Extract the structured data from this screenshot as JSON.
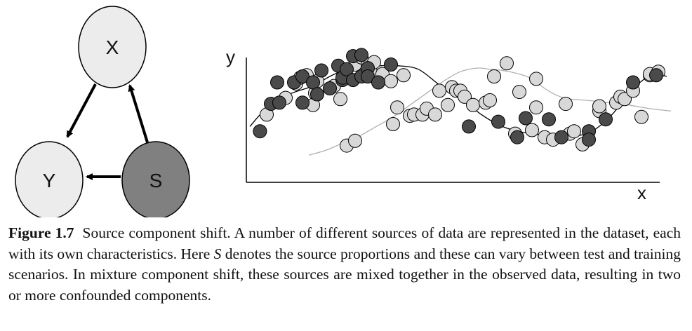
{
  "diagram": {
    "nodes": [
      {
        "id": "X",
        "label": "X",
        "fill": "#ececec"
      },
      {
        "id": "Y",
        "label": "Y",
        "fill": "#ececec"
      },
      {
        "id": "S",
        "label": "S",
        "fill": "#808080"
      }
    ],
    "edges": [
      {
        "from": "X",
        "to": "Y"
      },
      {
        "from": "S",
        "to": "Y"
      },
      {
        "from": "S",
        "to": "X"
      }
    ]
  },
  "chart_data": {
    "type": "scatter",
    "xlabel": "x",
    "ylabel": "y",
    "xlim": [
      0,
      100
    ],
    "ylim": [
      0,
      100
    ],
    "grid": false,
    "series": [
      {
        "color": "#4a4a4a",
        "points": [
          [
            2.4,
            34
          ],
          [
            5,
            57
          ],
          [
            6.5,
            75
          ],
          [
            7,
            58
          ],
          [
            10.5,
            75
          ],
          [
            12.5,
            80
          ],
          [
            12.5,
            58
          ],
          [
            15,
            75
          ],
          [
            16,
            65
          ],
          [
            17,
            85
          ],
          [
            19,
            70
          ],
          [
            21,
            89
          ],
          [
            22,
            77
          ],
          [
            22,
            79
          ],
          [
            23,
            86
          ],
          [
            24.5,
            77
          ],
          [
            24.5,
            97
          ],
          [
            26.5,
            98
          ],
          [
            26.5,
            80
          ],
          [
            28,
            87
          ],
          [
            28,
            80
          ],
          [
            30.5,
            75
          ],
          [
            33.5,
            90
          ],
          [
            52,
            38
          ],
          [
            59,
            42
          ],
          [
            63.5,
            29
          ],
          [
            65.5,
            45
          ],
          [
            71,
            44
          ],
          [
            74,
            29
          ],
          [
            80.5,
            34
          ],
          [
            80.5,
            27
          ],
          [
            84.5,
            44
          ],
          [
            91,
            75
          ],
          [
            96.5,
            81
          ]
        ],
        "curve": [
          [
            0,
            38
          ],
          [
            3,
            50
          ],
          [
            6,
            58
          ],
          [
            10,
            66
          ],
          [
            15,
            72
          ],
          [
            19,
            80
          ],
          [
            23,
            86
          ],
          [
            27,
            88
          ],
          [
            31,
            89
          ],
          [
            35,
            89
          ],
          [
            40,
            86
          ],
          [
            45,
            73
          ],
          [
            50,
            62
          ],
          [
            55,
            48
          ],
          [
            60,
            38
          ],
          [
            65,
            33
          ],
          [
            70,
            31
          ],
          [
            75,
            30
          ],
          [
            80,
            32
          ],
          [
            84,
            41
          ],
          [
            87,
            52
          ],
          [
            90,
            65
          ],
          [
            93,
            76
          ],
          [
            96,
            82
          ],
          [
            99,
            80
          ]
        ]
      },
      {
        "color": "#d8d8d8",
        "points": [
          [
            4,
            48
          ],
          [
            8.5,
            62
          ],
          [
            11,
            74
          ],
          [
            12,
            79
          ],
          [
            13.5,
            81
          ],
          [
            15,
            56
          ],
          [
            15.5,
            66
          ],
          [
            16,
            76
          ],
          [
            20,
            72
          ],
          [
            21.5,
            61
          ],
          [
            25,
            90
          ],
          [
            26.5,
            96
          ],
          [
            28,
            90
          ],
          [
            29,
            82
          ],
          [
            29.5,
            92
          ],
          [
            31.5,
            82
          ],
          [
            33.5,
            76
          ],
          [
            36.5,
            81
          ],
          [
            23,
            22
          ],
          [
            25,
            26
          ],
          [
            34,
            40
          ],
          [
            35,
            54
          ],
          [
            38,
            47
          ],
          [
            39,
            48
          ],
          [
            41,
            48
          ],
          [
            42,
            53
          ],
          [
            44,
            48
          ],
          [
            45,
            68
          ],
          [
            47,
            56
          ],
          [
            48,
            71
          ],
          [
            49,
            68
          ],
          [
            50,
            68
          ],
          [
            51,
            63
          ],
          [
            53,
            56
          ],
          [
            56,
            58
          ],
          [
            57,
            60
          ],
          [
            58,
            80
          ],
          [
            61,
            91
          ],
          [
            63,
            32
          ],
          [
            64,
            67
          ],
          [
            67,
            35
          ],
          [
            68,
            54
          ],
          [
            68,
            78
          ],
          [
            70,
            29
          ],
          [
            72,
            27
          ],
          [
            75,
            57
          ],
          [
            76,
            32
          ],
          [
            77,
            34
          ],
          [
            79,
            23
          ],
          [
            83,
            51
          ],
          [
            83,
            55
          ],
          [
            87,
            58
          ],
          [
            88,
            63
          ],
          [
            89,
            61
          ],
          [
            91,
            68
          ],
          [
            93,
            46
          ],
          [
            95,
            81
          ],
          [
            95,
            82
          ],
          [
            97,
            84
          ]
        ],
        "curve": [
          [
            14,
            14
          ],
          [
            18,
            18
          ],
          [
            22,
            24
          ],
          [
            26,
            30
          ],
          [
            30,
            38
          ],
          [
            34,
            46
          ],
          [
            38,
            56
          ],
          [
            42,
            66
          ],
          [
            46,
            76
          ],
          [
            50,
            84
          ],
          [
            54,
            87
          ],
          [
            57,
            86
          ],
          [
            60,
            85
          ],
          [
            64,
            82
          ],
          [
            67,
            78
          ],
          [
            70,
            70
          ],
          [
            73,
            64
          ],
          [
            76,
            61
          ],
          [
            80,
            60
          ],
          [
            85,
            58
          ],
          [
            90,
            56
          ],
          [
            95,
            53
          ],
          [
            100,
            51
          ]
        ]
      }
    ]
  },
  "caption": {
    "label": "Figure 1.7",
    "text_before": "Source component shift. A number of different sources of data are represented in the dataset, each with its own characteristics. Here ",
    "symbol": "S",
    "text_after": " denotes the source proportions and these can vary between test and training scenarios. In mixture component shift, these sources are mixed together in the observed data, resulting in two or more confounded components."
  }
}
